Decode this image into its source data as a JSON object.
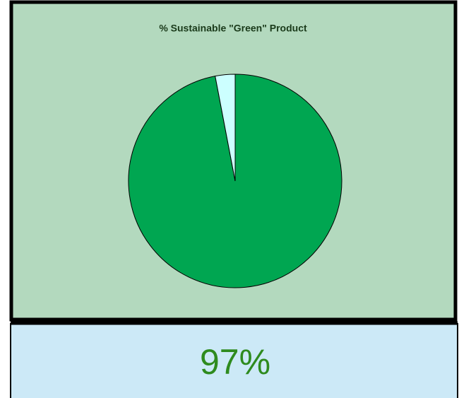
{
  "chart_data": {
    "type": "pie",
    "title": "% Sustainable \"Green\" Product",
    "values": [
      97,
      3
    ],
    "colors": [
      "#00a651",
      "#ccffff"
    ],
    "start_angle": 0,
    "direction": "clockwise"
  },
  "summary": {
    "text": "97%"
  }
}
